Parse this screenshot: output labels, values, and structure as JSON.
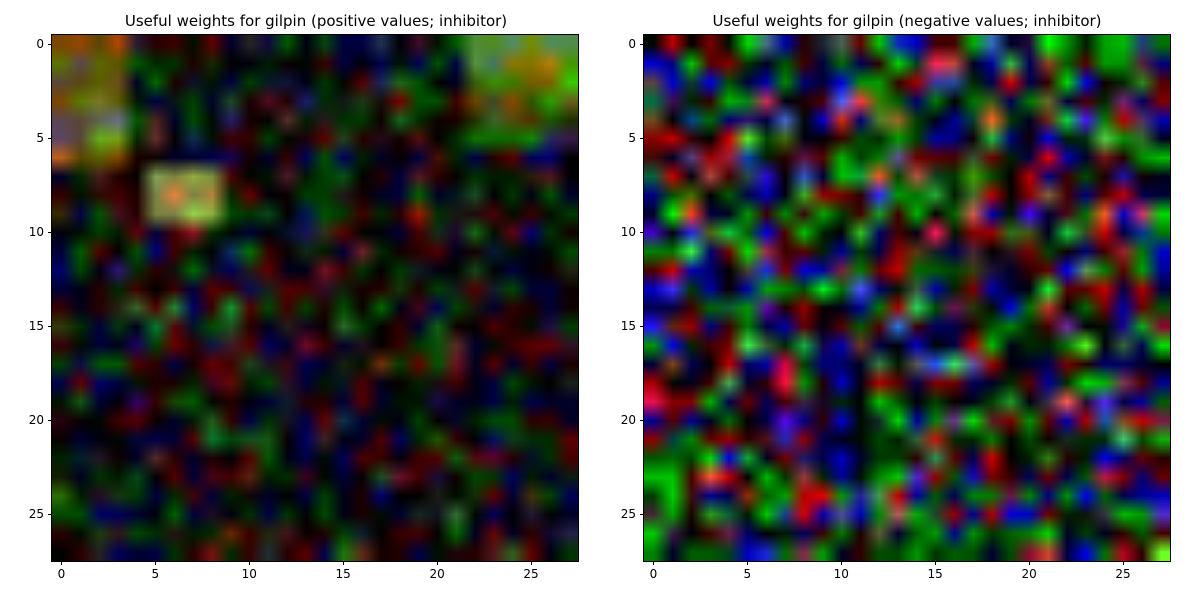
{
  "chart_data": [
    {
      "type": "heatmap",
      "title": "Useful weights for gilpin (positive values; inhibitor)",
      "xlabel": "",
      "ylabel": "",
      "xlim": [
        -0.5,
        27.5
      ],
      "ylim": [
        27.5,
        -0.5
      ],
      "xticks": [
        0,
        5,
        10,
        15,
        20,
        25
      ],
      "yticks": [
        0,
        5,
        10,
        15,
        20,
        25
      ],
      "grid": false,
      "colormap": "RGB",
      "rows": 28,
      "cols": 28
    },
    {
      "type": "heatmap",
      "title": "Useful weights for gilpin (negative values; inhibitor)",
      "xlabel": "",
      "ylabel": "",
      "xlim": [
        -0.5,
        27.5
      ],
      "ylim": [
        27.5,
        -0.5
      ],
      "xticks": [
        0,
        5,
        10,
        15,
        20,
        25
      ],
      "yticks": [
        0,
        5,
        10,
        15,
        20,
        25
      ],
      "grid": false,
      "colormap": "RGB",
      "rows": 28,
      "cols": 28
    }
  ]
}
